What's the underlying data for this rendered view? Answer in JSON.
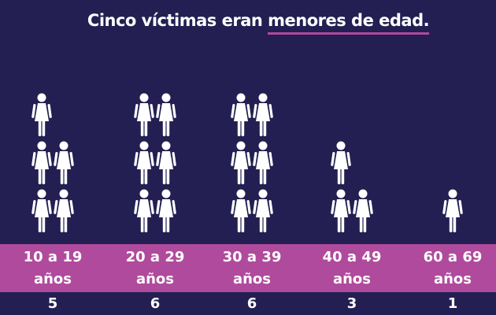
{
  "chart_data": {
    "type": "pictograph",
    "title": "Cinco víctimas eran",
    "title_highlight": "menores de edad.",
    "categories": [
      "10 a 19 años",
      "20 a 29 años",
      "30 a 39 años",
      "40 a 49 años",
      "60 a 69 años"
    ],
    "values": [
      5,
      6,
      6,
      3,
      1
    ],
    "color": "#ffffff",
    "band_color": "#b04a9c",
    "background": "#231f52"
  }
}
